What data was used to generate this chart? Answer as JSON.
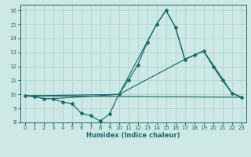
{
  "xlabel": "Humidex (Indice chaleur)",
  "ylabel": "",
  "xlim": [
    -0.5,
    23.5
  ],
  "ylim": [
    8,
    16.4
  ],
  "yticks": [
    8,
    9,
    10,
    11,
    12,
    13,
    14,
    15,
    16
  ],
  "xticks": [
    0,
    1,
    2,
    3,
    4,
    5,
    6,
    7,
    8,
    9,
    10,
    11,
    12,
    13,
    14,
    15,
    16,
    17,
    18,
    19,
    20,
    21,
    22,
    23
  ],
  "bg_color": "#cde8e5",
  "grid_color": "#aed4d0",
  "line_color": "#1a6b6b",
  "line1_x": [
    0,
    1,
    2,
    3,
    4,
    5,
    6,
    7,
    8,
    9,
    10,
    11,
    12,
    13,
    14,
    15,
    16,
    17,
    18,
    19,
    20,
    21,
    22,
    23
  ],
  "line1_y": [
    9.9,
    9.85,
    9.7,
    9.7,
    9.45,
    9.35,
    8.65,
    8.5,
    8.1,
    8.6,
    10.0,
    11.0,
    12.1,
    13.7,
    15.0,
    16.0,
    14.8,
    12.5,
    12.8,
    13.1,
    12.0,
    11.0,
    10.1,
    9.8
  ],
  "line2_x": [
    0,
    10,
    14,
    15,
    16,
    17,
    18,
    19,
    22,
    23
  ],
  "line2_y": [
    9.9,
    10.0,
    15.0,
    16.0,
    14.8,
    12.5,
    12.8,
    13.1,
    10.1,
    9.8
  ],
  "line3_x": [
    0,
    1,
    2,
    3,
    10,
    17,
    18,
    19,
    22,
    23
  ],
  "line3_y": [
    9.9,
    9.85,
    9.7,
    9.7,
    10.0,
    12.5,
    12.8,
    13.1,
    10.1,
    9.8
  ],
  "line4_x": [
    0,
    23
  ],
  "line4_y": [
    9.9,
    9.8
  ]
}
